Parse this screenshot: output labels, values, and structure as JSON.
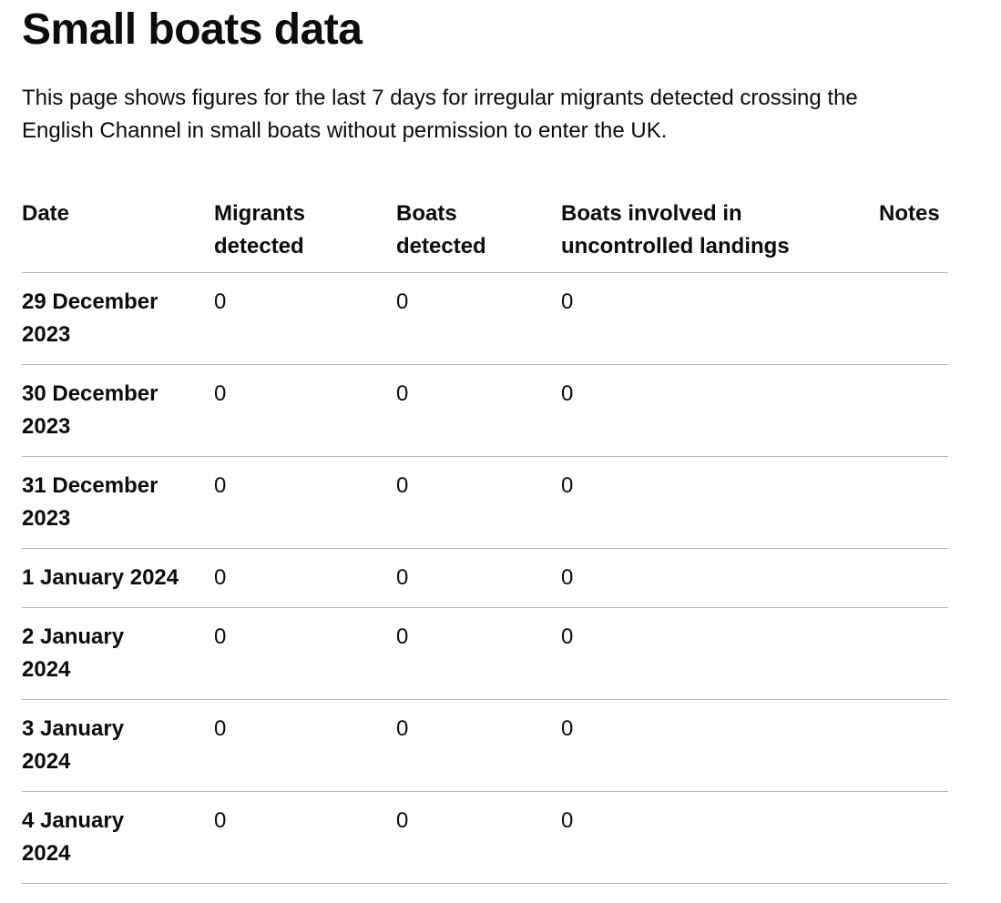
{
  "header": {
    "title": "Small boats data",
    "description": "This page shows figures for the last 7 days for irregular migrants detected crossing the English Channel in small boats without permission to enter the UK."
  },
  "table": {
    "columns": [
      "Date",
      "Migrants detected",
      "Boats detected",
      "Boats involved in uncontrolled landings",
      "Notes"
    ],
    "rows": [
      {
        "date": [
          "29 December",
          "2023"
        ],
        "migrants_detected": "0",
        "boats_detected": "0",
        "boats_uncontrolled_landings": "0",
        "notes": ""
      },
      {
        "date": [
          "30 December",
          "2023"
        ],
        "migrants_detected": "0",
        "boats_detected": "0",
        "boats_uncontrolled_landings": "0",
        "notes": ""
      },
      {
        "date": [
          "31 December",
          "2023"
        ],
        "migrants_detected": "0",
        "boats_detected": "0",
        "boats_uncontrolled_landings": "0",
        "notes": ""
      },
      {
        "date": [
          "1 January 2024"
        ],
        "migrants_detected": "0",
        "boats_detected": "0",
        "boats_uncontrolled_landings": "0",
        "notes": ""
      },
      {
        "date": [
          "2 January",
          "2024"
        ],
        "migrants_detected": "0",
        "boats_detected": "0",
        "boats_uncontrolled_landings": "0",
        "notes": ""
      },
      {
        "date": [
          "3 January",
          "2024"
        ],
        "migrants_detected": "0",
        "boats_detected": "0",
        "boats_uncontrolled_landings": "0",
        "notes": ""
      },
      {
        "date": [
          "4 January",
          "2024"
        ],
        "migrants_detected": "0",
        "boats_detected": "0",
        "boats_uncontrolled_landings": "0",
        "notes": ""
      }
    ]
  },
  "colors": {
    "text": "#0b0c0c",
    "border": "#b1b4b6",
    "background": "#ffffff"
  }
}
